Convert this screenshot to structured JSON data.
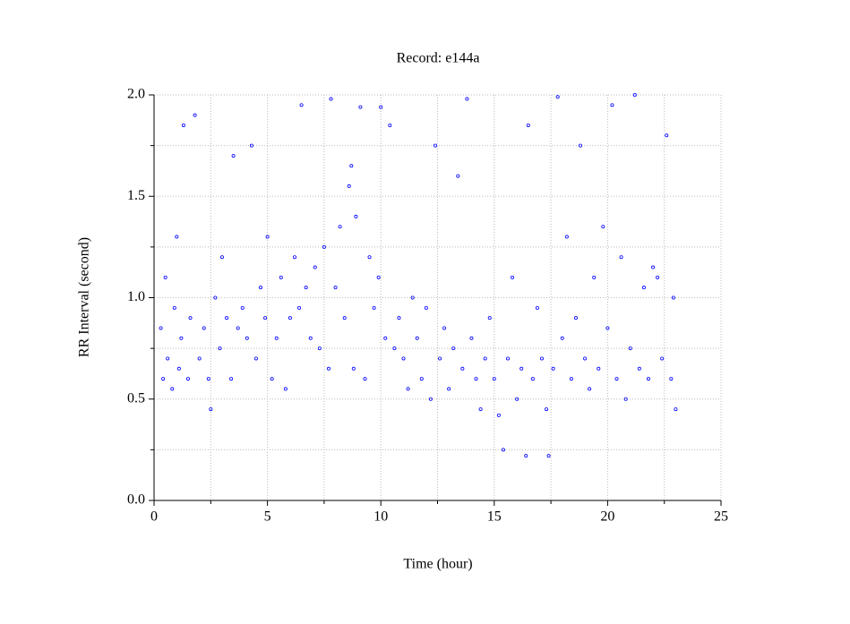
{
  "chart_data": {
    "type": "scatter",
    "title": "Record:  e144a",
    "x_label": "Time (hour)",
    "y_label": "RR Interval (second)",
    "color": "#0000ff",
    "grid": true,
    "xlim": [
      0,
      25
    ],
    "ylim": [
      0,
      2.0
    ],
    "xticks": [
      0,
      5,
      10,
      15,
      20,
      25
    ],
    "xticks_minor": [
      2.5,
      7.5,
      12.5,
      17.5,
      22.5
    ],
    "yticks": [
      {
        "value": 0,
        "label": "0.0"
      },
      0.5,
      {
        "value": 1,
        "label": "1.0"
      },
      1.5,
      {
        "value": 2,
        "label": "2.0"
      }
    ],
    "yticks_minor": [
      0.25,
      0.75,
      1.25,
      1.75
    ],
    "x": [
      0.3,
      0.4,
      0.5,
      0.6,
      0.8,
      0.9,
      1.0,
      1.1,
      1.2,
      1.3,
      1.5,
      1.6,
      1.8,
      2.0,
      2.2,
      2.4,
      2.5,
      2.7,
      2.9,
      3.0,
      3.2,
      3.4,
      3.5,
      3.7,
      3.9,
      4.1,
      4.3,
      4.5,
      4.7,
      4.9,
      5.0,
      5.2,
      5.4,
      5.6,
      5.8,
      6.0,
      6.2,
      6.4,
      6.5,
      6.7,
      6.9,
      7.1,
      7.3,
      7.5,
      7.7,
      7.8,
      8.0,
      8.2,
      8.4,
      8.6,
      8.7,
      8.8,
      8.9,
      9.1,
      9.3,
      9.5,
      9.7,
      9.9,
      10.0,
      10.2,
      10.4,
      10.6,
      10.8,
      11.0,
      11.2,
      11.4,
      11.6,
      11.8,
      12.0,
      12.2,
      12.4,
      12.6,
      12.8,
      13.0,
      13.2,
      13.4,
      13.6,
      13.8,
      14.0,
      14.2,
      14.4,
      14.6,
      14.8,
      15.0,
      15.2,
      15.4,
      15.6,
      15.8,
      16.0,
      16.2,
      16.4,
      16.5,
      16.7,
      16.9,
      17.1,
      17.3,
      17.4,
      17.6,
      17.8,
      18.0,
      18.2,
      18.4,
      18.6,
      18.8,
      19.0,
      19.2,
      19.4,
      19.6,
      19.8,
      20.0,
      20.2,
      20.4,
      20.6,
      20.8,
      21.0,
      21.2,
      21.4,
      21.6,
      21.8,
      22.0,
      22.2,
      22.4,
      22.6,
      22.8,
      22.9,
      23.0
    ],
    "values": [
      0.85,
      0.6,
      1.1,
      0.7,
      0.55,
      0.95,
      1.3,
      0.65,
      0.8,
      1.85,
      0.6,
      0.9,
      1.9,
      0.7,
      0.85,
      0.6,
      0.45,
      1.0,
      0.75,
      1.2,
      0.9,
      0.6,
      1.7,
      0.85,
      0.95,
      0.8,
      1.75,
      0.7,
      1.05,
      0.9,
      1.3,
      0.6,
      0.8,
      1.1,
      0.55,
      0.9,
      1.2,
      0.95,
      1.95,
      1.05,
      0.8,
      1.15,
      0.75,
      1.25,
      0.65,
      1.98,
      1.05,
      1.35,
      0.9,
      1.55,
      1.65,
      0.65,
      1.4,
      1.94,
      0.6,
      1.2,
      0.95,
      1.1,
      1.94,
      0.8,
      1.85,
      0.75,
      0.9,
      0.7,
      0.55,
      1.0,
      0.8,
      0.6,
      0.95,
      0.5,
      1.75,
      0.7,
      0.85,
      0.55,
      0.75,
      1.6,
      0.65,
      1.98,
      0.8,
      0.6,
      0.45,
      0.7,
      0.9,
      0.6,
      0.42,
      0.25,
      0.7,
      1.1,
      0.5,
      0.65,
      0.22,
      1.85,
      0.6,
      0.95,
      0.7,
      0.45,
      0.22,
      0.65,
      1.99,
      0.8,
      1.3,
      0.6,
      0.9,
      1.75,
      0.7,
      0.55,
      1.1,
      0.65,
      1.35,
      0.85,
      1.95,
      0.6,
      1.2,
      0.5,
      0.75,
      2.0,
      0.65,
      1.05,
      0.6,
      1.15,
      1.1,
      0.7,
      1.8,
      0.6,
      1.0,
      0.45
    ]
  }
}
